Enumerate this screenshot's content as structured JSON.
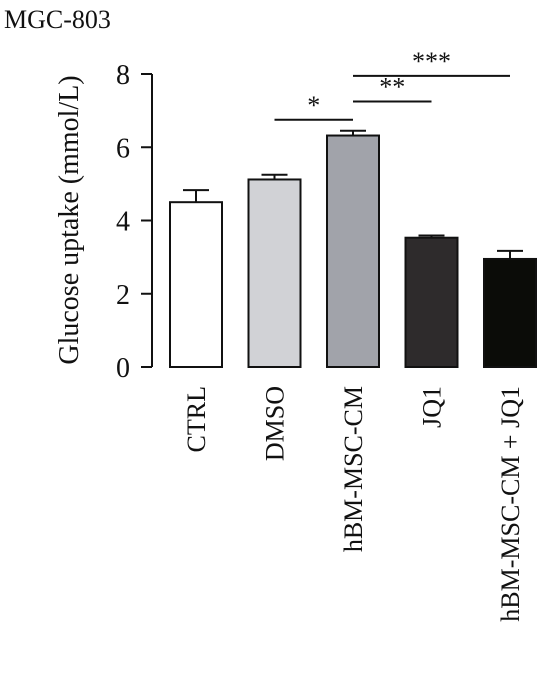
{
  "panel_title": "MGC-803",
  "chart_data": {
    "type": "bar",
    "title": "",
    "xlabel": "",
    "ylabel": "Glucose uptake (mmol/L)",
    "ylim": [
      0,
      8
    ],
    "yticks": [
      "0",
      "2",
      "4",
      "6",
      "8"
    ],
    "grid": false,
    "legend": "none",
    "categories": [
      "CTRL",
      "DMSO",
      "hBM-MSC-CM",
      "JQ1",
      "hBM-MSC-CM + JQ1"
    ],
    "values": [
      4.5,
      5.12,
      6.32,
      3.53,
      2.95
    ],
    "errors": [
      0.33,
      0.13,
      0.13,
      0.06,
      0.22
    ],
    "bar_colors": [
      "#ffffff",
      "#d1d2d6",
      "#a1a3aa",
      "#2e2b2c",
      "#0b0c08"
    ],
    "significance": [
      {
        "from": 1,
        "to": 2,
        "label": "*",
        "y": 6.75
      },
      {
        "from": 2,
        "to": 3,
        "label": "**",
        "y": 7.25
      },
      {
        "from": 2,
        "to": 4,
        "label": "***",
        "y": 7.95
      }
    ]
  }
}
